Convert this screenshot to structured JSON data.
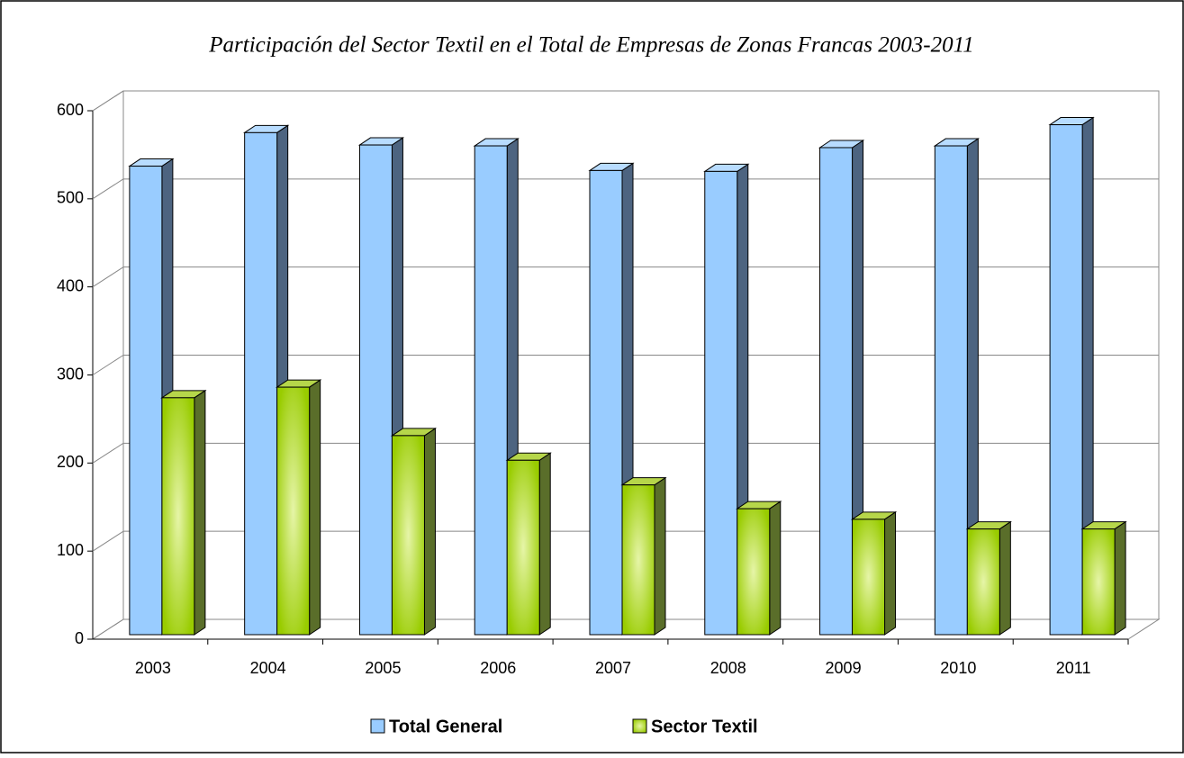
{
  "chart_data": {
    "type": "bar3d",
    "title": "Participación del Sector Textil en el Total de Empresas de Zonas Francas  2003-2011",
    "categories": [
      "2003",
      "2004",
      "2005",
      "2006",
      "2007",
      "2008",
      "2009",
      "2010",
      "2011"
    ],
    "series": [
      {
        "name": "Total General",
        "color": "#99ccff",
        "values": [
          532,
          570,
          556,
          555,
          527,
          526,
          553,
          555,
          579
        ]
      },
      {
        "name": "Sector Textil",
        "color": "#99cc00",
        "values": [
          269,
          281,
          226,
          198,
          170,
          143,
          131,
          120,
          120
        ]
      }
    ],
    "ylim": [
      0,
      600
    ],
    "yticks": [
      0,
      100,
      200,
      300,
      400,
      500,
      600
    ],
    "grid": true,
    "legend": "bottom"
  }
}
